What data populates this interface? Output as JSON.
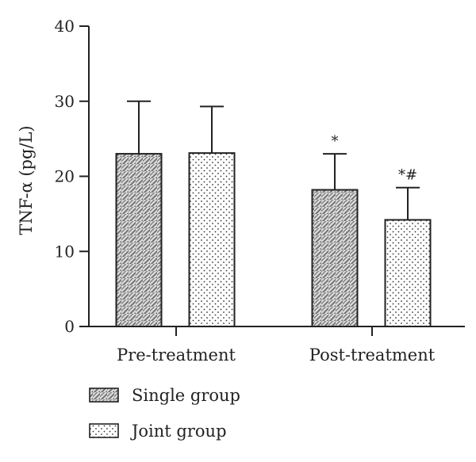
{
  "chart_data": {
    "type": "bar",
    "title": "",
    "xlabel": "",
    "ylabel": "TNF-α (pg/L)",
    "ylim": [
      0,
      40
    ],
    "yticks": [
      0,
      10,
      20,
      30,
      40
    ],
    "categories": [
      "Pre-treatment",
      "Post-treatment"
    ],
    "series": [
      {
        "name": "Single group",
        "pattern": "diagonal-hatch",
        "color": "#7a7a7a",
        "values": [
          23.0,
          18.2
        ],
        "error": [
          7.0,
          4.8
        ],
        "annotations": [
          "",
          "*"
        ]
      },
      {
        "name": "Joint group",
        "pattern": "dots",
        "color": "#ffffff",
        "values": [
          23.1,
          14.2
        ],
        "error": [
          6.2,
          4.3
        ],
        "annotations": [
          "",
          "*#"
        ]
      }
    ],
    "grid": false,
    "legend_position": "bottom-left"
  }
}
